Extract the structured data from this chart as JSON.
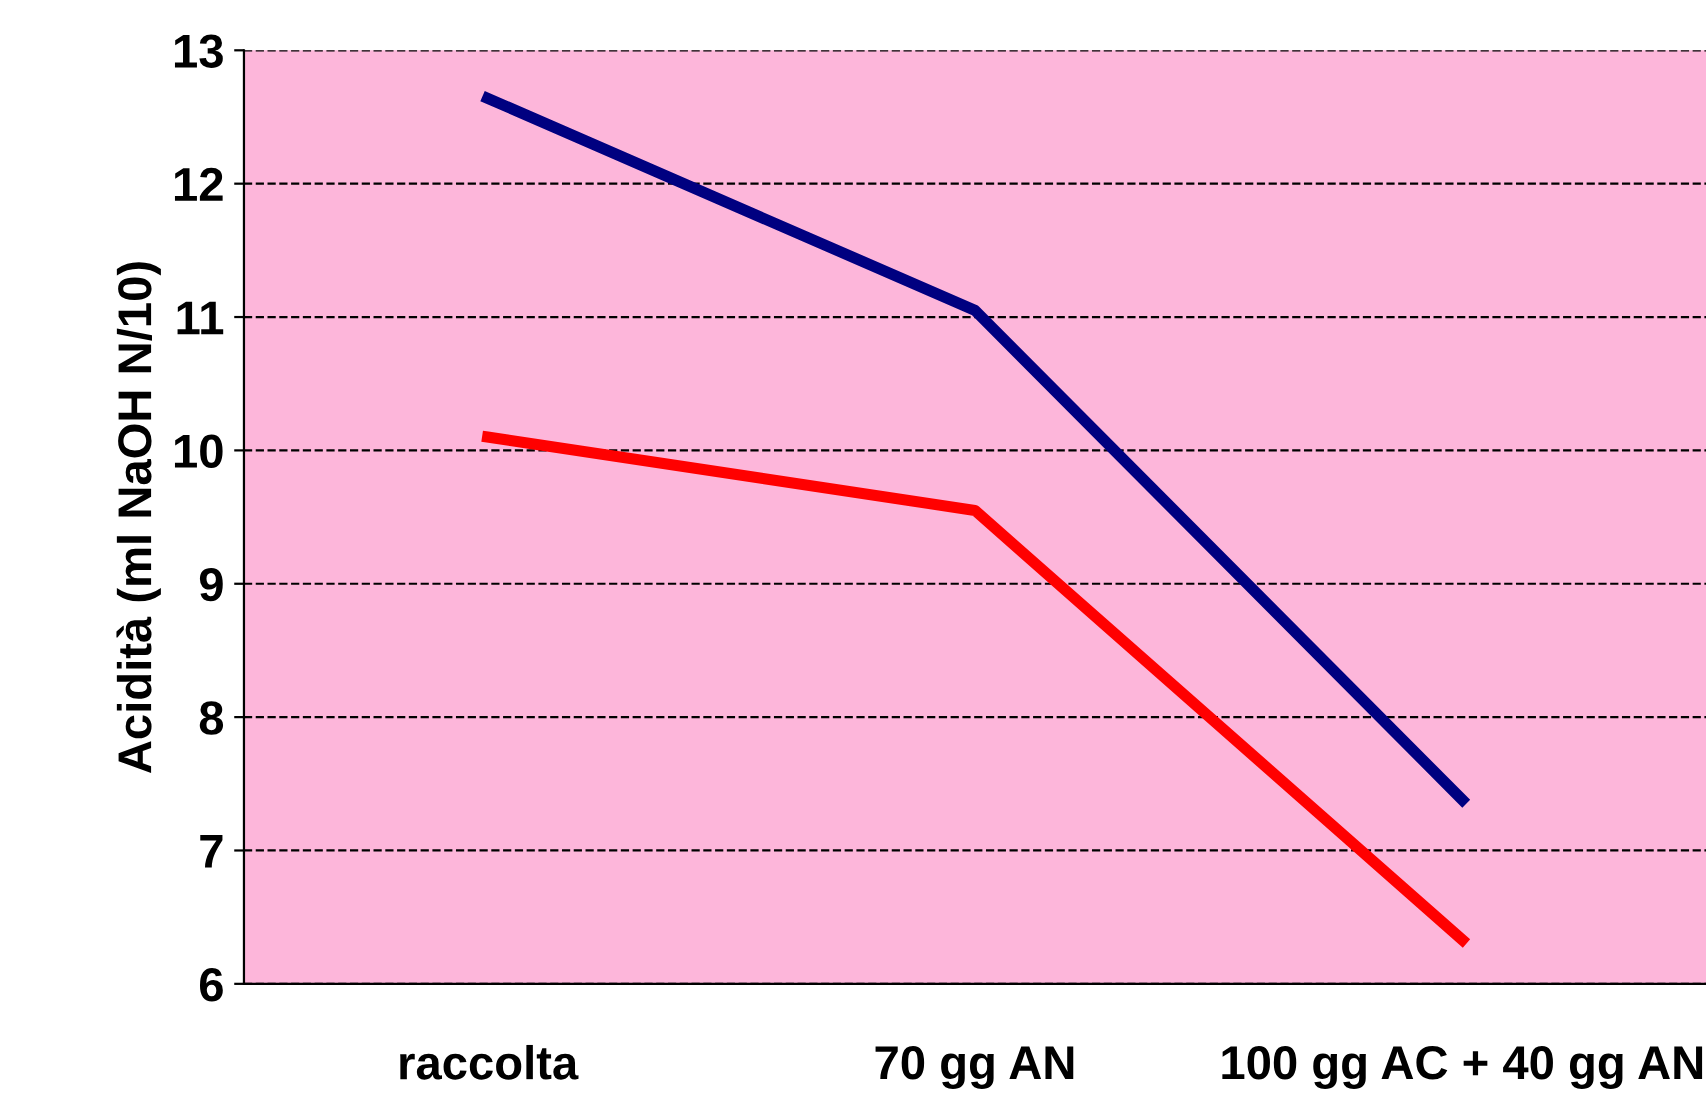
{
  "chart_data": {
    "type": "line",
    "ylabel": "Acidità (ml NaOH N/10)",
    "categories": [
      "raccolta",
      "70 gg AN",
      "100 gg AC + 40 gg AN"
    ],
    "series": [
      {
        "color": "#000080",
        "values": [
          12.64,
          11.05,
          7.38
        ]
      },
      {
        "color": "#ff0000",
        "values": [
          10.1,
          9.55,
          6.33
        ]
      }
    ],
    "ylim": [
      6,
      13
    ],
    "yticks": [
      6,
      7,
      8,
      9,
      10,
      11,
      12,
      13
    ],
    "grid": "y",
    "legend": false,
    "marker": "none",
    "line_style": "solid"
  }
}
